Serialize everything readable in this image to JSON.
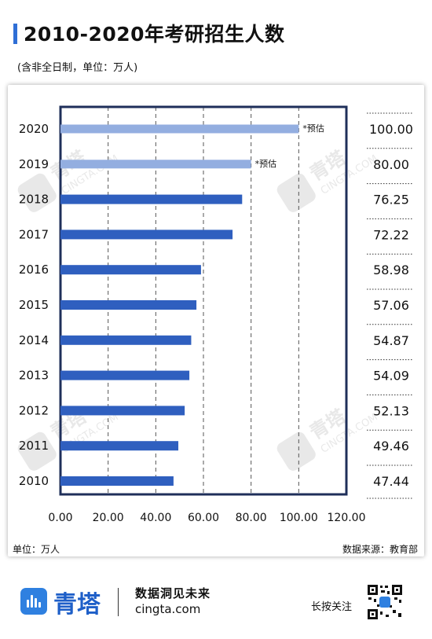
{
  "header": {
    "title": "2010-2020年考研招生人数",
    "subtitle": "(含非全日制，单位：万人)"
  },
  "footer": {
    "unit_note": "单位：万人",
    "source_note": "数据来源：教育部",
    "brand_name": "青塔",
    "slogan": "数据洞见未来",
    "site": "cingta.com",
    "press_hint": "长按关注",
    "logo_icon": "cingta-logo-icon",
    "qr_icon": "qr-code-icon"
  },
  "watermark": {
    "brand": "青塔",
    "site": "CINGTA.COM"
  },
  "colors": {
    "accent": "#2f6fd6",
    "bar": "#2f5fbf",
    "bar_estimate": "#93aee0",
    "frame": "#1f2f5a"
  },
  "chart_data": {
    "type": "bar",
    "orientation": "horizontal",
    "categories": [
      "2020",
      "2019",
      "2018",
      "2017",
      "2016",
      "2015",
      "2014",
      "2013",
      "2012",
      "2011",
      "2010"
    ],
    "values": [
      100.0,
      80.0,
      76.25,
      72.22,
      58.98,
      57.06,
      54.87,
      54.09,
      52.13,
      49.46,
      47.44
    ],
    "value_labels": [
      "100.00",
      "80.00",
      "76.25",
      "72.22",
      "58.98",
      "57.06",
      "54.87",
      "54.09",
      "52.13",
      "49.46",
      "47.44"
    ],
    "estimated": [
      true,
      true,
      false,
      false,
      false,
      false,
      false,
      false,
      false,
      false,
      false
    ],
    "estimate_label": "*预估",
    "xlim": [
      0,
      120
    ],
    "xticks": [
      "0.00",
      "20.00",
      "40.00",
      "60.00",
      "80.00",
      "100.00",
      "120.00"
    ],
    "grid": "vertical dashed",
    "title": "",
    "xlabel": "",
    "ylabel": ""
  }
}
